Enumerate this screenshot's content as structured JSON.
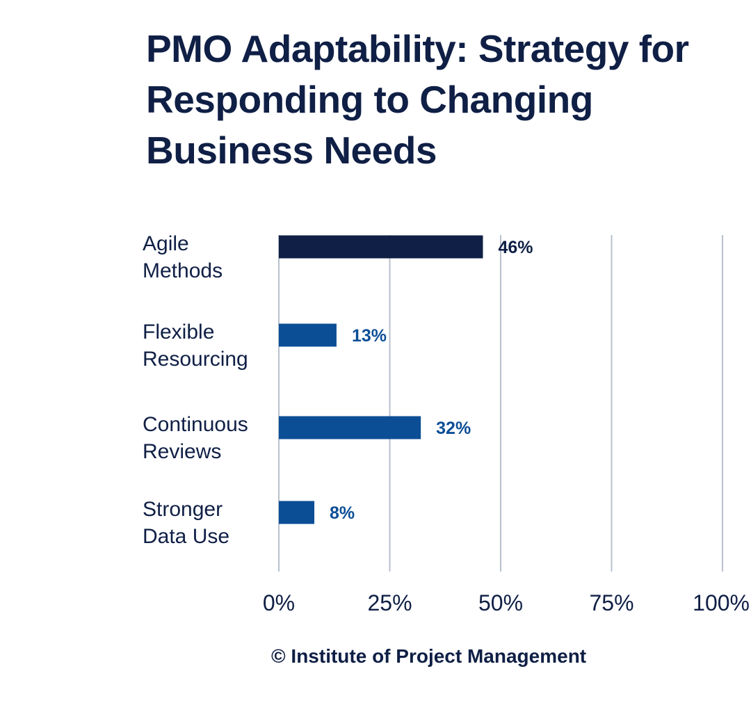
{
  "title": "PMO Adaptability: Strategy for Responding to Changing Business Needs",
  "source": "© Institute of Project Management",
  "colors": {
    "primary": "#0f1f45",
    "secondary": "#0c4e96",
    "grid": "#b8c1cc"
  },
  "chart_data": {
    "type": "bar",
    "orientation": "horizontal",
    "title": "PMO Adaptability: Strategy for Responding to Changing Business Needs",
    "categories": [
      [
        "Agile",
        "Methods"
      ],
      [
        "Flexible",
        "Resourcing"
      ],
      [
        "Continuous",
        "Reviews"
      ],
      [
        "Stronger",
        "Data Use"
      ]
    ],
    "values": [
      46,
      13,
      32,
      8
    ],
    "value_labels": [
      "46%",
      "13%",
      "32%",
      "8%"
    ],
    "xlim": [
      0,
      100
    ],
    "xticks": [
      0,
      25,
      50,
      75,
      100
    ],
    "xtick_labels": [
      "0%",
      "25%",
      "50%",
      "75%",
      "100%"
    ],
    "grid": true,
    "legend": "none"
  }
}
